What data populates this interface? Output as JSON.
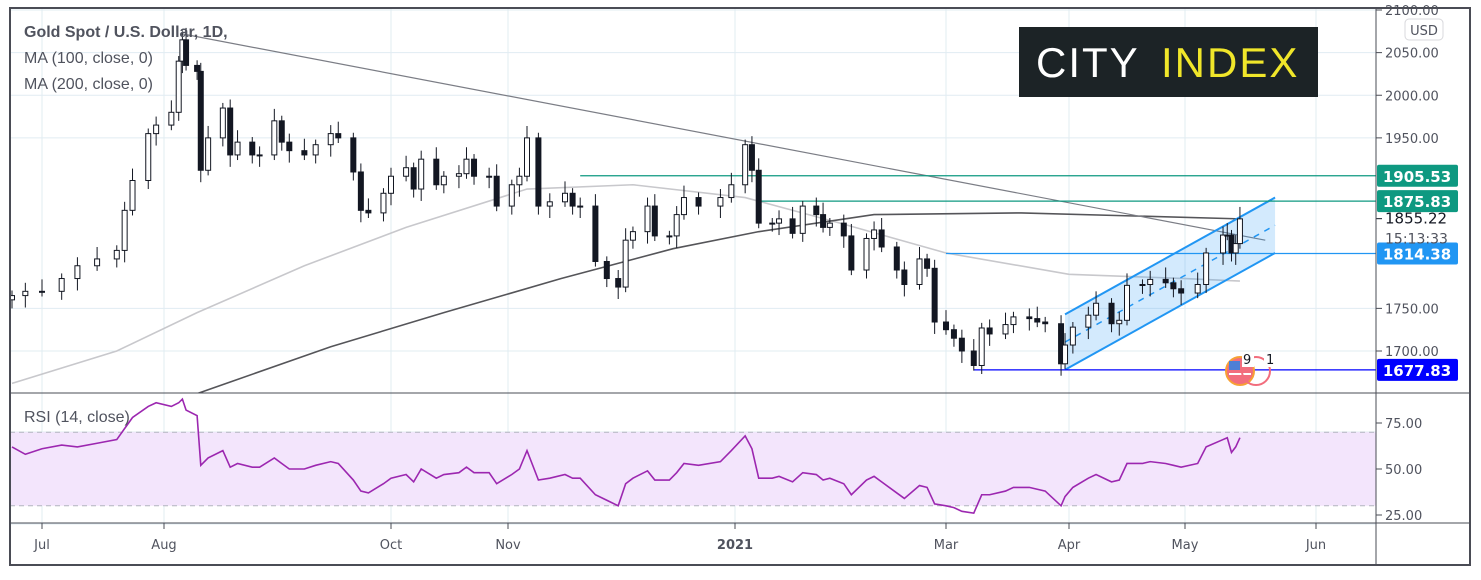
{
  "chart_data": {
    "type": "candlestick",
    "title": "Gold Spot / U.S. Dollar, 1D,",
    "indicators": [
      "MA (100, close, 0)",
      "MA (200, close, 0)"
    ],
    "rsi_label": "RSI (14, close)",
    "currency": "USD",
    "price_ticks": [
      "2100.00",
      "2050.00",
      "2000.00",
      "1950.00",
      "1700.00",
      "1750.00"
    ],
    "rsi_ticks": [
      "75.00",
      "50.00",
      "25.00"
    ],
    "rsi_bands": [
      30,
      70
    ],
    "ylim": [
      1650,
      2100
    ],
    "rsi_ylim": [
      20,
      95
    ],
    "time_ticks": [
      {
        "date": "2020-07-01",
        "label": "Jul"
      },
      {
        "date": "2020-08-01",
        "label": "Aug"
      },
      {
        "date": "2020-10-01",
        "label": "Oct"
      },
      {
        "date": "2020-11-01",
        "label": "Nov"
      },
      {
        "date": "2021-01-01",
        "label": "2021"
      },
      {
        "date": "2021-03-01",
        "label": "Mar"
      },
      {
        "date": "2021-04-01",
        "label": "Apr"
      },
      {
        "date": "2021-05-01",
        "label": "May"
      },
      {
        "date": "2021-06-01",
        "label": "Jun"
      }
    ],
    "series": [
      [
        "2020-06-22",
        1765,
        62
      ],
      [
        "2020-06-26",
        1770,
        58
      ],
      [
        "2020-07-01",
        1770,
        61
      ],
      [
        "2020-07-06",
        1785,
        63
      ],
      [
        "2020-07-10",
        1800,
        62
      ],
      [
        "2020-07-15",
        1808,
        64
      ],
      [
        "2020-07-20",
        1818,
        66
      ],
      [
        "2020-07-22",
        1865,
        72
      ],
      [
        "2020-07-24",
        1900,
        78
      ],
      [
        "2020-07-28",
        1955,
        84
      ],
      [
        "2020-07-30",
        1965,
        86
      ],
      [
        "2020-08-03",
        1980,
        84
      ],
      [
        "2020-08-05",
        2040,
        86
      ],
      [
        "2020-08-06",
        2065,
        88
      ],
      [
        "2020-08-07",
        2035,
        82
      ],
      [
        "2020-08-10",
        2028,
        79
      ],
      [
        "2020-08-11",
        1912,
        52
      ],
      [
        "2020-08-13",
        1950,
        56
      ],
      [
        "2020-08-17",
        1985,
        60
      ],
      [
        "2020-08-19",
        1930,
        51
      ],
      [
        "2020-08-21",
        1945,
        53
      ],
      [
        "2020-08-25",
        1930,
        51
      ],
      [
        "2020-08-27",
        1930,
        51
      ],
      [
        "2020-08-31",
        1970,
        56
      ],
      [
        "2020-09-02",
        1945,
        53
      ],
      [
        "2020-09-04",
        1935,
        50
      ],
      [
        "2020-09-08",
        1930,
        50
      ],
      [
        "2020-09-11",
        1942,
        52
      ],
      [
        "2020-09-15",
        1955,
        54
      ],
      [
        "2020-09-17",
        1950,
        53
      ],
      [
        "2020-09-21",
        1910,
        44
      ],
      [
        "2020-09-23",
        1865,
        38
      ],
      [
        "2020-09-25",
        1862,
        37
      ],
      [
        "2020-09-29",
        1885,
        42
      ],
      [
        "2020-10-01",
        1905,
        45
      ],
      [
        "2020-10-05",
        1915,
        47
      ],
      [
        "2020-10-07",
        1890,
        43
      ],
      [
        "2020-10-09",
        1925,
        50
      ],
      [
        "2020-10-13",
        1895,
        45
      ],
      [
        "2020-10-15",
        1905,
        47
      ],
      [
        "2020-10-19",
        1908,
        48
      ],
      [
        "2020-10-21",
        1925,
        51
      ],
      [
        "2020-10-23",
        1905,
        48
      ],
      [
        "2020-10-27",
        1905,
        48
      ],
      [
        "2020-10-29",
        1870,
        42
      ],
      [
        "2020-11-02",
        1895,
        47
      ],
      [
        "2020-11-04",
        1905,
        50
      ],
      [
        "2020-11-06",
        1950,
        60
      ],
      [
        "2020-11-09",
        1870,
        44
      ],
      [
        "2020-11-12",
        1875,
        45
      ],
      [
        "2020-11-16",
        1885,
        47
      ],
      [
        "2020-11-18",
        1870,
        45
      ],
      [
        "2020-11-20",
        1870,
        45
      ],
      [
        "2020-11-24",
        1805,
        36
      ],
      [
        "2020-11-27",
        1785,
        33
      ],
      [
        "2020-11-30",
        1775,
        30
      ],
      [
        "2020-12-02",
        1830,
        42
      ],
      [
        "2020-12-04",
        1840,
        45
      ],
      [
        "2020-12-08",
        1870,
        49
      ],
      [
        "2020-12-10",
        1835,
        44
      ],
      [
        "2020-12-14",
        1835,
        44
      ],
      [
        "2020-12-16",
        1860,
        48
      ],
      [
        "2020-12-18",
        1880,
        53
      ],
      [
        "2020-12-22",
        1870,
        52
      ],
      [
        "2020-12-28",
        1880,
        54
      ],
      [
        "2020-12-31",
        1895,
        60
      ],
      [
        "2021-01-04",
        1942,
        68
      ],
      [
        "2021-01-06",
        1912,
        61
      ],
      [
        "2021-01-08",
        1850,
        45
      ],
      [
        "2021-01-12",
        1850,
        45
      ],
      [
        "2021-01-14",
        1855,
        46
      ],
      [
        "2021-01-18",
        1838,
        43
      ],
      [
        "2021-01-21",
        1870,
        48
      ],
      [
        "2021-01-25",
        1860,
        47
      ],
      [
        "2021-01-27",
        1845,
        44
      ],
      [
        "2021-01-29",
        1850,
        45
      ],
      [
        "2021-02-02",
        1835,
        42
      ],
      [
        "2021-02-04",
        1795,
        36
      ],
      [
        "2021-02-08",
        1832,
        44
      ],
      [
        "2021-02-10",
        1842,
        46
      ],
      [
        "2021-02-12",
        1822,
        43
      ],
      [
        "2021-02-16",
        1795,
        37
      ],
      [
        "2021-02-18",
        1778,
        34
      ],
      [
        "2021-02-22",
        1808,
        41
      ],
      [
        "2021-02-24",
        1797,
        40
      ],
      [
        "2021-02-26",
        1734,
        31
      ],
      [
        "2021-03-01",
        1725,
        30
      ],
      [
        "2021-03-03",
        1715,
        29
      ],
      [
        "2021-03-05",
        1700,
        27
      ],
      [
        "2021-03-08",
        1683,
        26
      ],
      [
        "2021-03-10",
        1727,
        36
      ],
      [
        "2021-03-12",
        1720,
        36
      ],
      [
        "2021-03-16",
        1731,
        38
      ],
      [
        "2021-03-18",
        1740,
        40
      ],
      [
        "2021-03-22",
        1738,
        40
      ],
      [
        "2021-03-24",
        1734,
        39
      ],
      [
        "2021-03-26",
        1732,
        38
      ],
      [
        "2021-03-30",
        1685,
        30
      ],
      [
        "2021-03-31",
        1707,
        35
      ],
      [
        "2021-04-02",
        1728,
        40
      ],
      [
        "2021-04-06",
        1742,
        45
      ],
      [
        "2021-04-08",
        1756,
        47
      ],
      [
        "2021-04-12",
        1732,
        43
      ],
      [
        "2021-04-14",
        1736,
        44
      ],
      [
        "2021-04-16",
        1777,
        53
      ],
      [
        "2021-04-20",
        1778,
        53
      ],
      [
        "2021-04-22",
        1784,
        54
      ],
      [
        "2021-04-26",
        1780,
        53
      ],
      [
        "2021-04-28",
        1773,
        52
      ],
      [
        "2021-04-30",
        1768,
        51
      ],
      [
        "2021-05-04",
        1778,
        53
      ],
      [
        "2021-05-06",
        1815,
        62
      ],
      [
        "2021-05-10",
        1836,
        66
      ],
      [
        "2021-05-11",
        1836,
        67
      ],
      [
        "2021-05-12",
        1815,
        59
      ],
      [
        "2021-05-13",
        1826,
        62
      ],
      [
        "2021-05-14",
        1855,
        67
      ]
    ],
    "ma100": [
      [
        "2020-06-22",
        1662
      ],
      [
        "2020-07-20",
        1700
      ],
      [
        "2020-08-10",
        1745
      ],
      [
        "2020-09-08",
        1800
      ],
      [
        "2020-10-05",
        1845
      ],
      [
        "2020-11-06",
        1890
      ],
      [
        "2020-12-04",
        1895
      ],
      [
        "2021-01-04",
        1880
      ],
      [
        "2021-02-01",
        1850
      ],
      [
        "2021-03-01",
        1815
      ],
      [
        "2021-04-01",
        1790
      ],
      [
        "2021-05-01",
        1785
      ],
      [
        "2021-05-14",
        1782
      ]
    ],
    "ma200": [
      [
        "2020-08-10",
        1650
      ],
      [
        "2020-09-15",
        1705
      ],
      [
        "2020-10-15",
        1745
      ],
      [
        "2020-11-15",
        1785
      ],
      [
        "2020-12-15",
        1820
      ],
      [
        "2021-01-08",
        1840
      ],
      [
        "2021-02-10",
        1860
      ],
      [
        "2021-03-20",
        1862
      ],
      [
        "2021-05-14",
        1855
      ]
    ],
    "trendline": [
      [
        "2020-08-06",
        2072
      ],
      [
        "2021-05-20",
        1830
      ]
    ],
    "channel": {
      "start": "2021-03-31",
      "end": "2021-05-19",
      "lower": [
        1678,
        1815
      ],
      "upper": [
        1743,
        1880
      ]
    },
    "levels": [
      {
        "value": "1905.53",
        "from": "2020-11-20",
        "color": "#0e9981"
      },
      {
        "value": "1875.83",
        "from": "2021-01-08",
        "color": "#0e9981"
      },
      {
        "value": "1814.38",
        "from": "2021-03-01",
        "color": "#2196f3"
      },
      {
        "value": "1677.83",
        "from": "2021-03-08",
        "color": "#0000ff"
      }
    ],
    "last_price": "1855.22",
    "countdown": "15:13:33",
    "events": {
      "icon": "us-flag-icon",
      "counts": [
        "9",
        "1"
      ]
    }
  },
  "logo": {
    "part1": "CITY",
    "part2": "INDEX",
    "colors": {
      "bg": "#1c2326",
      "part1": "#ffffff",
      "part2": "#f0e62a"
    }
  },
  "colors": {
    "rsi_line": "#9c27b0",
    "rsi_fill": "#f3e5fc",
    "grid": "#e1ecf2"
  }
}
